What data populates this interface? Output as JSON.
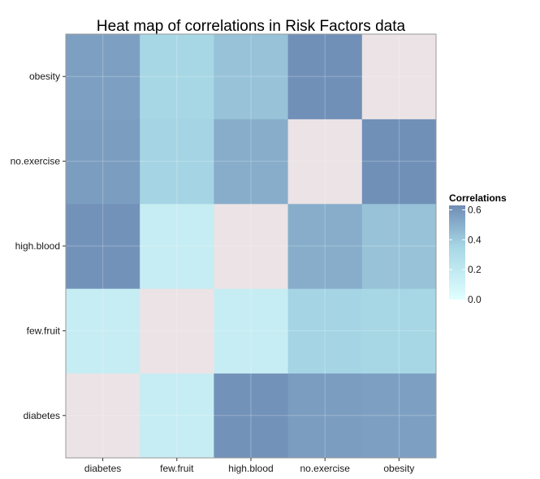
{
  "chart_data": {
    "type": "heatmap",
    "title": "Heat map of correlations in Risk Factors data",
    "xlabel": "",
    "ylabel": "",
    "x_categories": [
      "diabetes",
      "few.fruit",
      "high.blood",
      "no.exercise",
      "obesity"
    ],
    "y_categories": [
      "diabetes",
      "few.fruit",
      "high.blood",
      "no.exercise",
      "obesity"
    ],
    "values": [
      [
        null,
        0.16,
        0.61,
        0.57,
        0.56
      ],
      [
        0.16,
        null,
        0.16,
        0.36,
        0.35
      ],
      [
        0.61,
        0.16,
        null,
        0.51,
        0.43
      ],
      [
        0.57,
        0.36,
        0.51,
        null,
        0.62
      ],
      [
        0.56,
        0.35,
        0.43,
        0.62,
        null
      ]
    ],
    "diagonal_color": "#ebe3e5",
    "legend": {
      "title": "Correlations",
      "ticks": [
        "0.0",
        "0.2",
        "0.4",
        "0.6"
      ],
      "tick_values": [
        0.0,
        0.2,
        0.4,
        0.6
      ],
      "range": [
        0.0,
        0.63
      ],
      "placement": "right"
    },
    "color_low": "#e0ffff",
    "color_mid": "#a8d8e6",
    "color_high": "#6f8db6",
    "panel_background": "#ebebeb",
    "grid": true
  }
}
